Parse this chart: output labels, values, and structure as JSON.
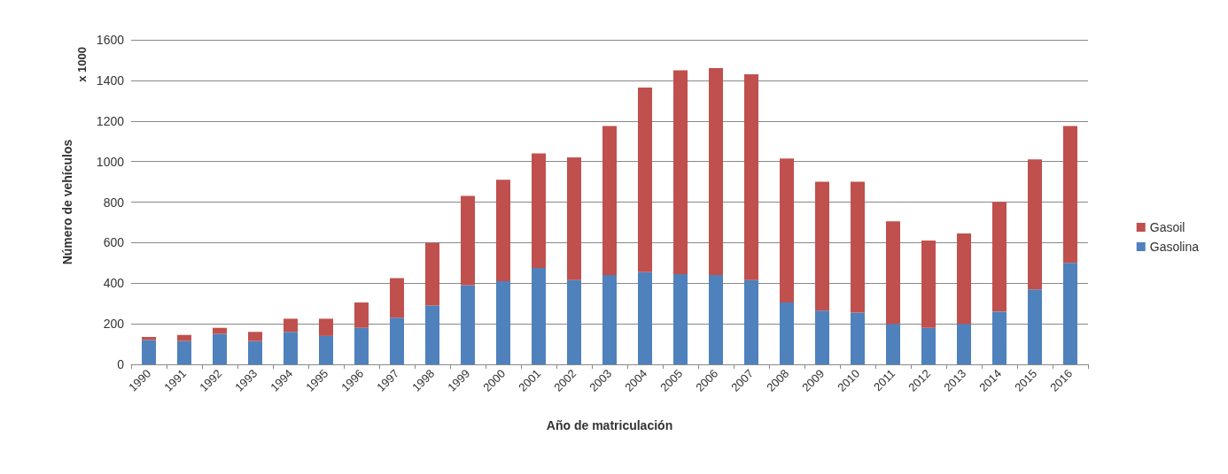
{
  "chart_data": {
    "type": "bar",
    "stacked": true,
    "xlabel": "Año de matriculación",
    "ylabel": "Número de vehículos",
    "annotations": [
      "x 1000"
    ],
    "categories": [
      "1990",
      "1991",
      "1992",
      "1993",
      "1994",
      "1995",
      "1996",
      "1997",
      "1998",
      "1999",
      "2000",
      "2001",
      "2002",
      "2003",
      "2004",
      "2005",
      "2006",
      "2007",
      "2008",
      "2009",
      "2010",
      "2011",
      "2012",
      "2013",
      "2014",
      "2015",
      "2016"
    ],
    "series": [
      {
        "name": "Gasolina",
        "color": "#4f81bd",
        "values": [
          120,
          115,
          150,
          115,
          160,
          140,
          180,
          230,
          290,
          390,
          410,
          475,
          415,
          440,
          455,
          445,
          440,
          415,
          305,
          265,
          255,
          200,
          180,
          200,
          260,
          370,
          500
        ]
      },
      {
        "name": "Gasoil",
        "color": "#c0504d",
        "values": [
          15,
          30,
          30,
          45,
          65,
          85,
          125,
          195,
          310,
          440,
          500,
          565,
          605,
          735,
          910,
          1005,
          1020,
          1015,
          710,
          635,
          645,
          505,
          430,
          445,
          540,
          640,
          675
        ]
      }
    ],
    "ylim": [
      0,
      1600
    ],
    "yticks": [
      0,
      200,
      400,
      600,
      800,
      1000,
      1200,
      1400,
      1600
    ],
    "grid": "y",
    "legend": "right"
  }
}
